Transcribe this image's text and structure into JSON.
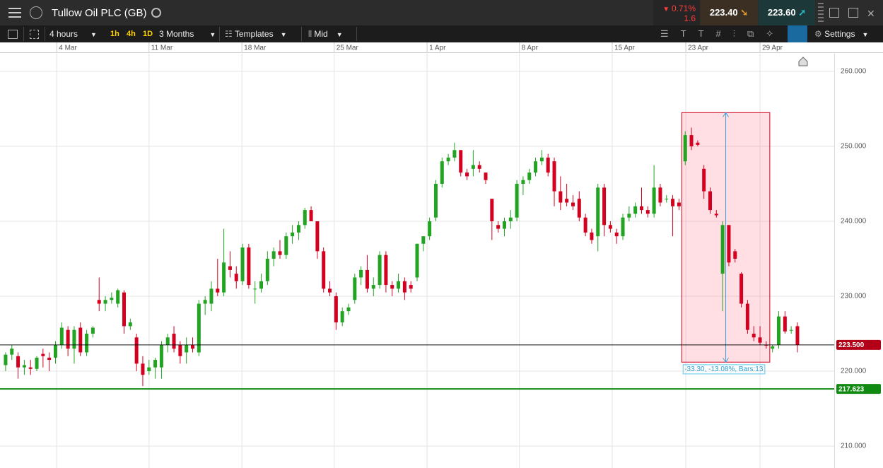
{
  "header": {
    "title": "Tullow Oil PLC (GB)",
    "change_percent": "0.71%",
    "change_points": "1.6",
    "sell_price": "223.40",
    "buy_price": "223.60"
  },
  "toolbar": {
    "interval": "4 hours",
    "quick_intervals": [
      "1h",
      "4h",
      "1D"
    ],
    "range": "3 Months",
    "templates": "Templates",
    "price_type": "Mid",
    "settings": "Settings"
  },
  "chart_data": {
    "type": "candlestick",
    "up_color": "#22a322",
    "down_color": "#d3001f",
    "grid": true,
    "xlim": [
      -0.9,
      132.9
    ],
    "xticks": [
      {
        "value": 8.2,
        "label": "4 Mar"
      },
      {
        "value": 23,
        "label": "11 Mar"
      },
      {
        "value": 37.9,
        "label": "18 Mar"
      },
      {
        "value": 52.7,
        "label": "25 Mar"
      },
      {
        "value": 67.6,
        "label": "1 Apr"
      },
      {
        "value": 82.4,
        "label": "8 Apr"
      },
      {
        "value": 97.3,
        "label": "15 Apr"
      },
      {
        "value": 109.1,
        "label": "23 Apr"
      },
      {
        "value": 121,
        "label": "29 Apr"
      }
    ],
    "ylim": [
      207.26,
      262.55
    ],
    "yticks": [
      {
        "value": 210,
        "label": "210.000"
      },
      {
        "value": 220,
        "label": "220.000"
      },
      {
        "value": 230,
        "label": "230.000"
      },
      {
        "value": 240,
        "label": "240.000"
      },
      {
        "value": 250,
        "label": "250.000"
      },
      {
        "value": 260,
        "label": "260.000"
      }
    ],
    "ohlc": [
      [
        220.8,
        222.5,
        220,
        222.2
      ],
      [
        222.2,
        223.5,
        221.5,
        223
      ],
      [
        222,
        222.5,
        219,
        220.5
      ],
      [
        220.5,
        221.5,
        219.5,
        220.8
      ],
      [
        220.5,
        221.5,
        219.5,
        220.3
      ],
      [
        220.3,
        222,
        220,
        221.8
      ],
      [
        222.3,
        223,
        220.5,
        222
      ],
      [
        221.8,
        222.5,
        220,
        221.5
      ],
      [
        221.8,
        224,
        221,
        223.5
      ],
      [
        223.5,
        226.5,
        223,
        225.8
      ],
      [
        225.5,
        226,
        222,
        223
      ],
      [
        223,
        226,
        221,
        225.5
      ],
      [
        225.8,
        226.5,
        222,
        222.5
      ],
      [
        222.5,
        225.5,
        222,
        225
      ],
      [
        225,
        226,
        224.5,
        225.8
      ],
      [
        229.5,
        232.5,
        228,
        229
      ],
      [
        229,
        230,
        228,
        229.5
      ],
      [
        229.5,
        230.5,
        229,
        229.8
      ],
      [
        229,
        231,
        228.5,
        230.8
      ],
      [
        230.5,
        230.8,
        225,
        226
      ],
      [
        226,
        227,
        225.5,
        226.5
      ],
      [
        224.5,
        225,
        220,
        221
      ],
      [
        221,
        222,
        218,
        219.5
      ],
      [
        220,
        221.5,
        219.5,
        220.5
      ],
      [
        220.5,
        221.8,
        219,
        221.5
      ],
      [
        220.5,
        224,
        219,
        223.5
      ],
      [
        223.5,
        225,
        222.5,
        224.5
      ],
      [
        225,
        226,
        222.5,
        223
      ],
      [
        223.5,
        224,
        221,
        222
      ],
      [
        222.5,
        224.5,
        221,
        223.5
      ],
      [
        223.5,
        224.5,
        222.5,
        223
      ],
      [
        222.5,
        229.5,
        222,
        229
      ],
      [
        229,
        230,
        227.5,
        229.5
      ],
      [
        229,
        232,
        228,
        231
      ],
      [
        231,
        235,
        230,
        230.5
      ],
      [
        230.5,
        239,
        230,
        234.5
      ],
      [
        234,
        236,
        232.5,
        233.5
      ],
      [
        233,
        234,
        231,
        232
      ],
      [
        232,
        237,
        231.5,
        236.5
      ],
      [
        236.5,
        237,
        231,
        231.5
      ],
      [
        231,
        232,
        229,
        231
      ],
      [
        231,
        233,
        230.5,
        232
      ],
      [
        232,
        236,
        231.5,
        235
      ],
      [
        235,
        236.5,
        234,
        236
      ],
      [
        236,
        237.5,
        235,
        235.5
      ],
      [
        235.5,
        238.5,
        235,
        238
      ],
      [
        238,
        239.5,
        237,
        238.5
      ],
      [
        238.5,
        240,
        237.5,
        239.5
      ],
      [
        239.5,
        241.8,
        239,
        241.5
      ],
      [
        241.5,
        242,
        240,
        240
      ],
      [
        240,
        240,
        235,
        236
      ],
      [
        236,
        236.5,
        230.5,
        231
      ],
      [
        231,
        232,
        230,
        230.5
      ],
      [
        230,
        230.5,
        225.5,
        226.5
      ],
      [
        226.5,
        228.5,
        226,
        228
      ],
      [
        228,
        229,
        227.5,
        228.5
      ],
      [
        229.5,
        233,
        229,
        232.5
      ],
      [
        232.5,
        234,
        231.5,
        233.5
      ],
      [
        233.5,
        235.5,
        230.5,
        231
      ],
      [
        231,
        232.5,
        230,
        231.5
      ],
      [
        231.5,
        236,
        231,
        235.5
      ],
      [
        235.5,
        236,
        230.5,
        231.5
      ],
      [
        231.5,
        232,
        230,
        231
      ],
      [
        231,
        233,
        230.5,
        232
      ],
      [
        232,
        232.5,
        229.5,
        230.5
      ],
      [
        231.5,
        232,
        230.5,
        231
      ],
      [
        232.5,
        237,
        232,
        237
      ],
      [
        237,
        238,
        236,
        238
      ],
      [
        238,
        240.5,
        237.5,
        240
      ],
      [
        240.5,
        245.5,
        240,
        245
      ],
      [
        245,
        248.5,
        244.5,
        248
      ],
      [
        248,
        249,
        247.5,
        248.5
      ],
      [
        248.5,
        250.5,
        248,
        249.5
      ],
      [
        249.5,
        249.5,
        246,
        246.5
      ],
      [
        246.5,
        247,
        245.5,
        246
      ],
      [
        247,
        249.5,
        246,
        247.5
      ],
      [
        247.5,
        248,
        246.5,
        247
      ],
      [
        246.5,
        246.5,
        245,
        245.5
      ],
      [
        243,
        243,
        237.5,
        240
      ],
      [
        239.5,
        240,
        238.5,
        239
      ],
      [
        239,
        240.5,
        238,
        240
      ],
      [
        240,
        241.5,
        239,
        240.5
      ],
      [
        240.5,
        245.5,
        240,
        245
      ],
      [
        245,
        246,
        243.5,
        245.5
      ],
      [
        245.5,
        247,
        245,
        246.5
      ],
      [
        246.5,
        248.5,
        246,
        248
      ],
      [
        248,
        249.5,
        247.5,
        248.5
      ],
      [
        248.5,
        249,
        246,
        246.5
      ],
      [
        248,
        248.5,
        242,
        244
      ],
      [
        244,
        246,
        241.5,
        242.5
      ],
      [
        243,
        245,
        242,
        242.5
      ],
      [
        242.5,
        243.5,
        241.5,
        242
      ],
      [
        243,
        244,
        240,
        240.5
      ],
      [
        240.5,
        241,
        238,
        238.5
      ],
      [
        238.5,
        239,
        237,
        237.5
      ],
      [
        238,
        245,
        236,
        244.5
      ],
      [
        244.5,
        245,
        238,
        239.5
      ],
      [
        239.5,
        240,
        238.5,
        239
      ],
      [
        238.5,
        239,
        237,
        238
      ],
      [
        238,
        241,
        237.5,
        240.5
      ],
      [
        240.5,
        242,
        240,
        241
      ],
      [
        241,
        242.5,
        240.5,
        242
      ],
      [
        242,
        244.5,
        241,
        241.5
      ],
      [
        241.5,
        242,
        240.5,
        241
      ],
      [
        241,
        247.5,
        240.5,
        244.5
      ],
      [
        244.5,
        245,
        242,
        242.5
      ],
      [
        243,
        243.5,
        242.5,
        243
      ],
      [
        243,
        243.5,
        238,
        242
      ],
      [
        242.5,
        243,
        241.5,
        242
      ],
      [
        248,
        252,
        247.5,
        251.5
      ],
      [
        251.5,
        252.5,
        249.5,
        250
      ],
      [
        250.5,
        250.8,
        250,
        250.2
      ],
      [
        247,
        247.5,
        243,
        244
      ],
      [
        244,
        244.5,
        241,
        241.5
      ],
      [
        241,
        241.5,
        240.5,
        240.8
      ],
      [
        233,
        240,
        228,
        239.5
      ],
      [
        239.5,
        239.5,
        234,
        234.5
      ],
      [
        236,
        236.3,
        234.5,
        235
      ],
      [
        233,
        233.2,
        228.5,
        229
      ],
      [
        229,
        229.5,
        225,
        225.5
      ],
      [
        225,
        226,
        224,
        224.5
      ],
      [
        224.5,
        226,
        223.5,
        223.8
      ],
      [
        223.5,
        224,
        223,
        223.4
      ],
      [
        223,
        223.5,
        222.5,
        223.3
      ],
      [
        223.5,
        228,
        223,
        227.3
      ],
      [
        227.3,
        228,
        225,
        225.3
      ],
      [
        225.5,
        226,
        225,
        225.5
      ],
      [
        226,
        226.5,
        222.5,
        223.5
      ]
    ],
    "price_lines": [
      {
        "value": 223.5,
        "label": "223.500",
        "color": "#111111",
        "label_color": "#b40016"
      },
      {
        "value": 217.623,
        "label": "217.623",
        "color": "#118a11",
        "label_color": "#118a11"
      }
    ],
    "measure": {
      "from_bar": 109,
      "to_bar": 122,
      "start": 254.5,
      "end": 221.2,
      "label": "-33.30, -13.08%, Bars:13"
    }
  }
}
